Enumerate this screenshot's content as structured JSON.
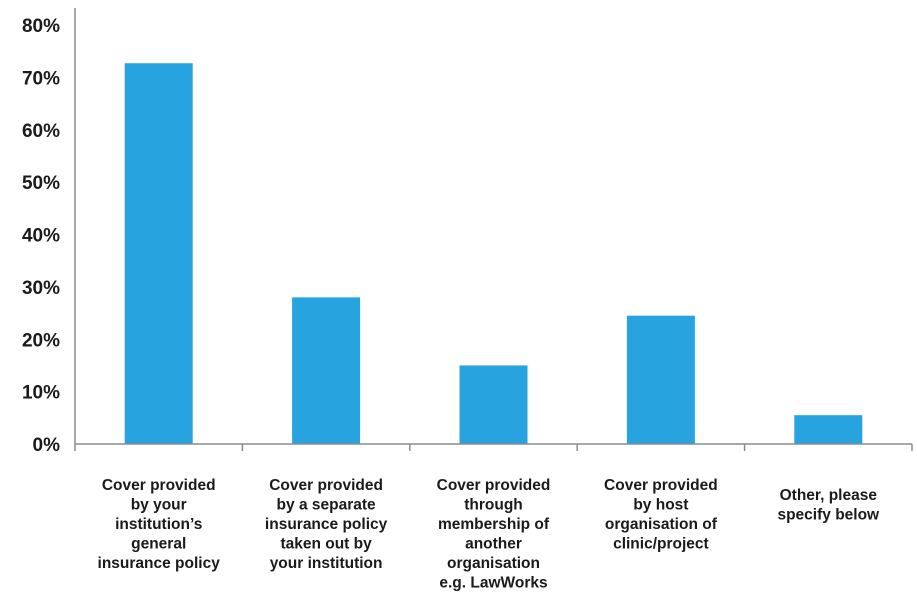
{
  "chart_data": {
    "type": "bar",
    "categories": [
      [
        "Cover provided",
        "by your",
        "institution’s",
        "general",
        "insurance policy"
      ],
      [
        "Cover provided",
        "by a separate",
        "insurance policy",
        "taken out by",
        "your institution"
      ],
      [
        "Cover provided",
        "through",
        "membership of",
        "another",
        "organisation",
        "e.g. LawWorks"
      ],
      [
        "Cover provided",
        "by host",
        "organisation of",
        "clinic/project"
      ],
      [
        "Other, please",
        "specify below"
      ]
    ],
    "values": [
      72.7,
      28.0,
      15.0,
      24.5,
      5.5
    ],
    "ylim": [
      0,
      80
    ],
    "yticks": [
      0,
      10,
      20,
      30,
      40,
      50,
      60,
      70,
      80
    ],
    "ytick_labels": [
      "0%",
      "10%",
      "20%",
      "30%",
      "40%",
      "50%",
      "60%",
      "70%",
      "80%"
    ],
    "title": "",
    "xlabel": "",
    "ylabel": "",
    "grid": false,
    "legend": "none",
    "bar_color": "#27a3df"
  }
}
